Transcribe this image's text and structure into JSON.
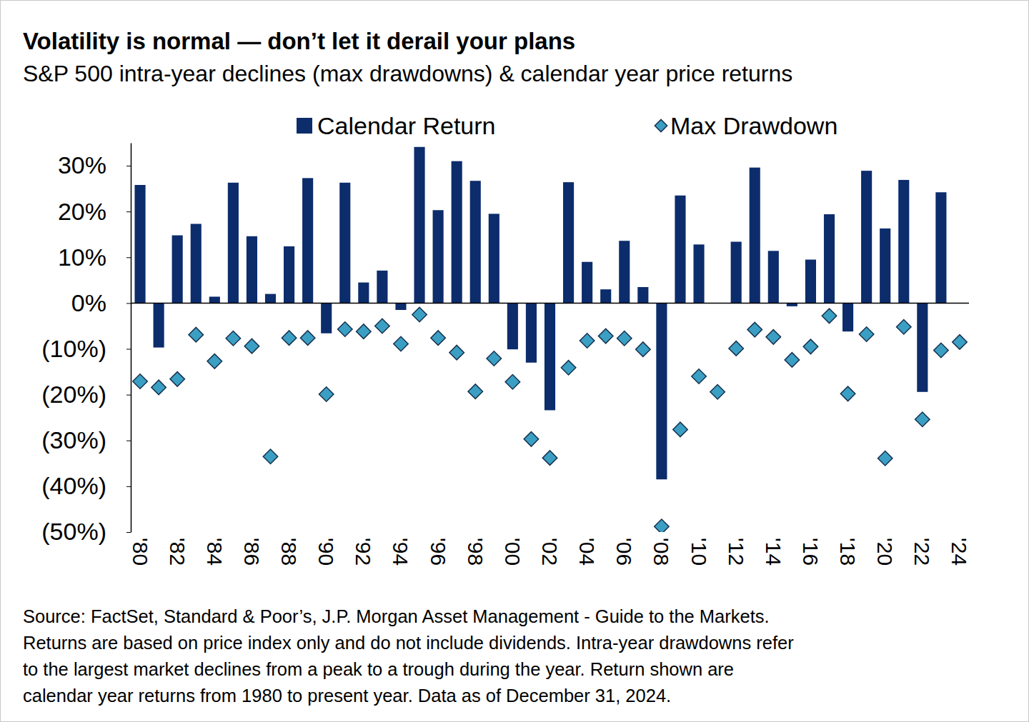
{
  "chart_data": {
    "type": "bar",
    "title": "Volatility is normal — don’t let it derail your plans",
    "subtitle": "S&P 500 intra-year declines (max drawdowns) & calendar year price returns",
    "source": [
      "Source: FactSet, Standard & Poor’s, J.P. Morgan Asset Management - Guide to the Markets.",
      "Returns are based on price index only and do not include dividends. Intra-year drawdowns refer",
      "to the largest market declines from a peak to a trough during the year. Return shown are",
      "calendar year returns from 1980 to present year. Data as of December 31, 2024."
    ],
    "categories": [
      "'80",
      null,
      "'82",
      null,
      "'84",
      null,
      "'86",
      null,
      "'88",
      null,
      "'90",
      null,
      "'92",
      null,
      "'94",
      null,
      "'96",
      null,
      "'98",
      null,
      "'00",
      null,
      "'02",
      null,
      "'04",
      null,
      "'06",
      null,
      "'08",
      null,
      "'10",
      null,
      "'12",
      null,
      "'14",
      null,
      "'16",
      null,
      "'18",
      null,
      "'20",
      null,
      "'22",
      null,
      "'24"
    ],
    "series": [
      {
        "name": "Calendar Return",
        "type": "bar",
        "color": "#0c2c6c",
        "values": [
          25.8,
          -9.7,
          14.8,
          17.3,
          1.4,
          26.3,
          14.6,
          2.0,
          12.4,
          27.3,
          -6.6,
          26.3,
          4.5,
          7.1,
          -1.5,
          34.1,
          20.3,
          31.0,
          26.7,
          19.5,
          -10.1,
          -13.0,
          -23.4,
          26.4,
          9.0,
          3.0,
          13.6,
          3.5,
          -38.5,
          23.5,
          12.8,
          0.0,
          13.4,
          29.6,
          11.4,
          -0.7,
          9.5,
          19.4,
          -6.2,
          28.9,
          16.3,
          26.9,
          -19.4,
          24.2,
          null
        ]
      },
      {
        "name": "Max Drawdown",
        "type": "scatter",
        "marker": "diamond",
        "color": "#3b9fc4",
        "values": [
          -17.1,
          -18.4,
          -16.6,
          -6.9,
          -12.7,
          -7.7,
          -9.4,
          -33.5,
          -7.6,
          -7.6,
          -19.9,
          -5.7,
          -6.2,
          -5.0,
          -8.9,
          -2.5,
          -7.6,
          -10.8,
          -19.3,
          -12.1,
          -17.2,
          -29.7,
          -33.8,
          -14.1,
          -8.2,
          -7.2,
          -7.7,
          -10.1,
          -48.8,
          -27.6,
          -16.0,
          -19.4,
          -9.9,
          -5.8,
          -7.4,
          -12.4,
          -9.5,
          -2.8,
          -19.8,
          -6.8,
          -33.9,
          -5.2,
          -25.4,
          -10.3,
          -8.5
        ]
      }
    ],
    "ylim": [
      -50,
      35
    ],
    "yticks": [
      {
        "value": 30,
        "label": "30%"
      },
      {
        "value": 20,
        "label": "20%"
      },
      {
        "value": 10,
        "label": "10%"
      },
      {
        "value": 0,
        "label": "0%"
      },
      {
        "value": -10,
        "label": "(10%)"
      },
      {
        "value": -20,
        "label": "(20%)"
      },
      {
        "value": -30,
        "label": "(30%)"
      },
      {
        "value": -40,
        "label": "(40%)"
      },
      {
        "value": -50,
        "label": "(50%)"
      }
    ],
    "grid": false,
    "legend": "top"
  }
}
